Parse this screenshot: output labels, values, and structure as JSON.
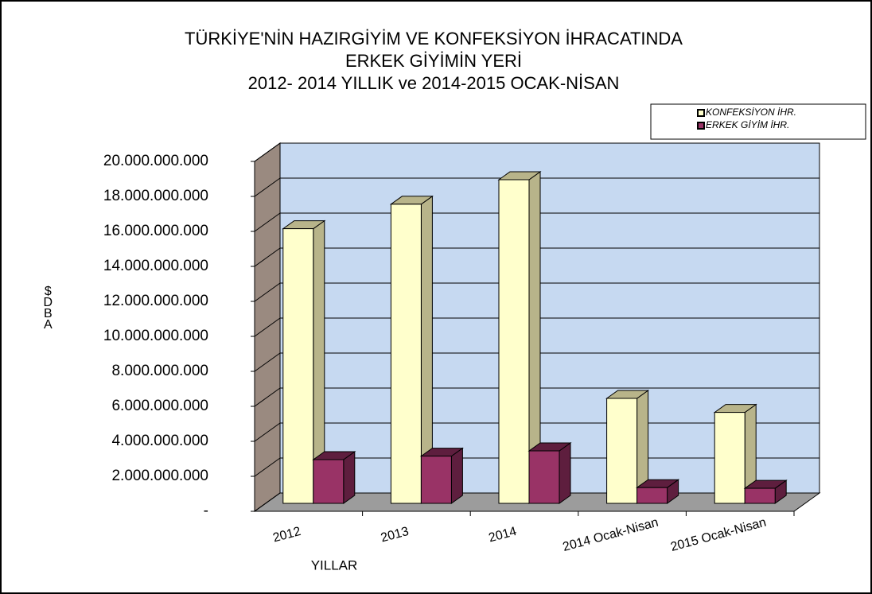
{
  "chart_data": {
    "type": "bar3d",
    "title": "TÜRKİYE'NİN HAZIRGİYİM VE KONFEKSİYON İHRACATINDA",
    "subtitle": "ERKEK GİYİMİN YERİ",
    "subtitle2": "2012- 2014 YILLIK  ve 2014-2015 OCAK-NİSAN",
    "y_label": "$DBA",
    "x_label": "YILLAR",
    "categories": [
      "2012",
      "2013",
      "2014",
      "2014 Ocak-Nisan",
      "2015 Ocak-Nisan"
    ],
    "series": [
      {
        "name": "KONFEKSİYON İHR.",
        "color": "#ffffcc",
        "side": "#b8b48a",
        "values": [
          15700000000,
          17100000000,
          18500000000,
          6000000000,
          5200000000
        ]
      },
      {
        "name": "ERKEK GİYİM İHR.",
        "color": "#993366",
        "side": "#5e1e3e",
        "values": [
          2500000000,
          2700000000,
          3000000000,
          900000000,
          860000000
        ]
      }
    ],
    "ylim": [
      0,
      20000000000
    ],
    "yticks": [
      {
        "value": 0,
        "label": "-"
      },
      {
        "value": 2000000000,
        "label": "2.000.000.000"
      },
      {
        "value": 4000000000,
        "label": "4.000.000.000"
      },
      {
        "value": 6000000000,
        "label": "6.000.000.000"
      },
      {
        "value": 8000000000,
        "label": "8.000.000.000"
      },
      {
        "value": 10000000000,
        "label": "10.000.000.000"
      },
      {
        "value": 12000000000,
        "label": "12.000.000.000"
      },
      {
        "value": 14000000000,
        "label": "14.000.000.000"
      },
      {
        "value": 16000000000,
        "label": "16.000.000.000"
      },
      {
        "value": 18000000000,
        "label": "18.000.000.000"
      },
      {
        "value": 20000000000,
        "label": "20.000.000.000"
      }
    ],
    "grid": true
  }
}
